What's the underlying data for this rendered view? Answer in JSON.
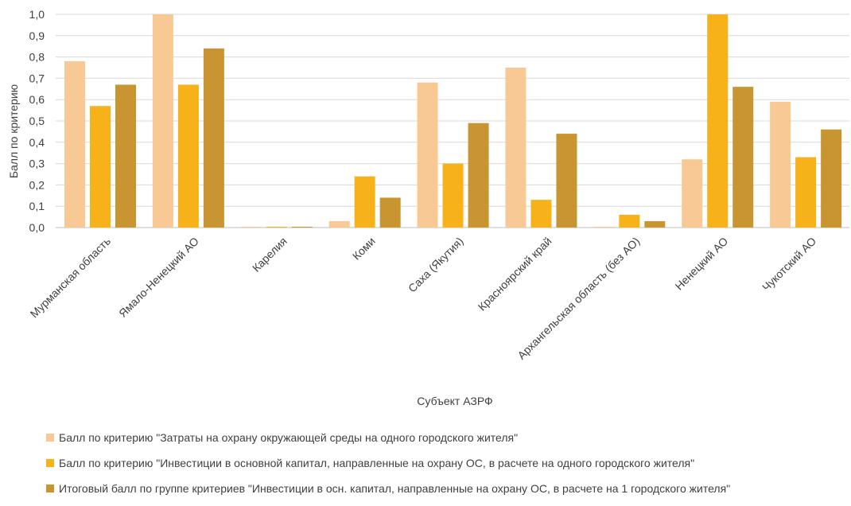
{
  "chart_data": {
    "type": "bar",
    "title": "",
    "xlabel": "Субъект АЗРФ",
    "ylabel": "Балл по критерию",
    "ylim": [
      0,
      1.0
    ],
    "yticks": [
      "0,0",
      "0,1",
      "0,2",
      "0,3",
      "0,4",
      "0,5",
      "0,6",
      "0,7",
      "0,8",
      "0,9",
      "1,0"
    ],
    "categories": [
      "Мурманская область",
      "Ямало-Ненецкий АО",
      "Карелия",
      "Коми",
      "Саха (Якутия)",
      "Красноярский край",
      "Архангельская область (без АО)",
      "Ненецкий АО",
      "Чукотский АО"
    ],
    "series": [
      {
        "name": "Балл по критерию \"Затраты на охрану окружающей среды на одного городского жителя\"",
        "color": "#f9c995",
        "values": [
          0.78,
          1.0,
          0.0,
          0.03,
          0.68,
          0.75,
          0.0,
          0.32,
          0.59
        ]
      },
      {
        "name": "Балл по критерию \"Инвестиции в основной капитал, направленные на охрану ОС, в расчете на одного городского жителя\"",
        "color": "#f7b21a",
        "values": [
          0.57,
          0.67,
          0.0,
          0.24,
          0.3,
          0.13,
          0.06,
          1.0,
          0.33
        ]
      },
      {
        "name": "Итоговый балл по группе критериев \"Инвестиции в осн. капитал, направленные на охрану ОС, в расчете на 1 городского жителя\"",
        "color": "#c99530",
        "values": [
          0.67,
          0.84,
          0.0,
          0.14,
          0.49,
          0.44,
          0.03,
          0.66,
          0.46
        ]
      }
    ],
    "grid": true,
    "legend_position": "bottom"
  }
}
